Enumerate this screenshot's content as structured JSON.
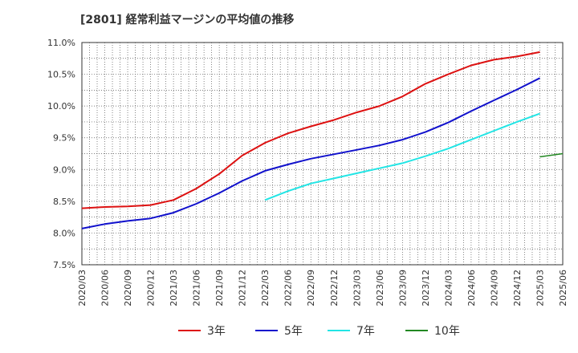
{
  "chart_data": {
    "type": "line",
    "title": "[2801]  経常利益マージンの平均値の推移",
    "xlabel": "",
    "ylabel": "",
    "ylim": [
      7.5,
      11.0
    ],
    "y_ticks": [
      "7.5%",
      "8.0%",
      "8.5%",
      "9.0%",
      "9.5%",
      "10.0%",
      "10.5%",
      "11.0%"
    ],
    "y_tick_values": [
      7.5,
      8.0,
      8.5,
      9.0,
      9.5,
      10.0,
      10.5,
      11.0
    ],
    "x_ticks": [
      "2020/03",
      "2020/06",
      "2020/09",
      "2020/12",
      "2021/03",
      "2021/06",
      "2021/09",
      "2021/12",
      "2022/03",
      "2022/06",
      "2022/09",
      "2022/12",
      "2023/03",
      "2023/06",
      "2023/09",
      "2023/12",
      "2024/03",
      "2024/06",
      "2024/09",
      "2024/12",
      "2025/03",
      "2025/06"
    ],
    "grid": true,
    "legend_position": "bottom",
    "series": [
      {
        "name": "3年",
        "color": "#dd1111",
        "start_index": 0,
        "values": [
          8.39,
          8.41,
          8.42,
          8.44,
          8.52,
          8.7,
          8.93,
          9.22,
          9.42,
          9.57,
          9.68,
          9.78,
          9.9,
          10.0,
          10.15,
          10.35,
          10.5,
          10.64,
          10.73,
          10.78,
          10.85
        ]
      },
      {
        "name": "5年",
        "color": "#1111cc",
        "start_index": 0,
        "values": [
          8.07,
          8.14,
          8.19,
          8.23,
          8.32,
          8.46,
          8.63,
          8.82,
          8.98,
          9.08,
          9.17,
          9.24,
          9.31,
          9.38,
          9.47,
          9.59,
          9.74,
          9.92,
          10.09,
          10.26,
          10.44
        ]
      },
      {
        "name": "7年",
        "color": "#22e5e5",
        "start_index": 8,
        "values": [
          8.52,
          8.66,
          8.78,
          8.86,
          8.94,
          9.02,
          9.1,
          9.21,
          9.33,
          9.47,
          9.61,
          9.75,
          9.88
        ]
      },
      {
        "name": "10年",
        "color": "#228822",
        "start_index": 20,
        "values": [
          9.2,
          9.25
        ]
      }
    ]
  }
}
